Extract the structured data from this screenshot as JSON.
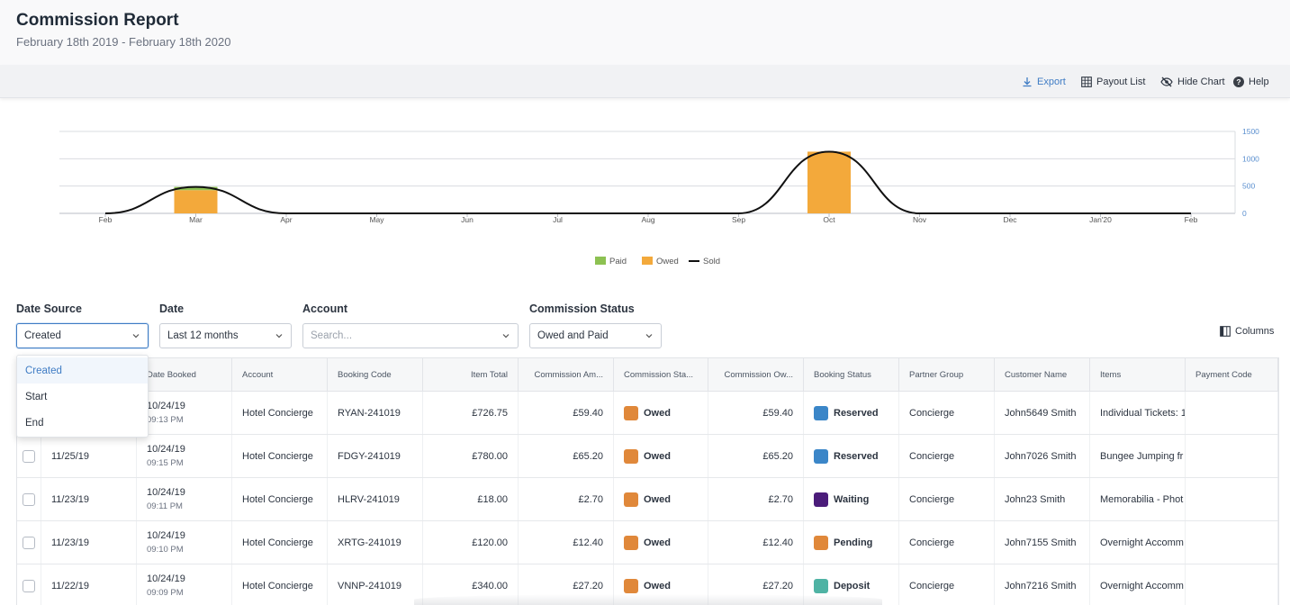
{
  "header": {
    "title": "Commission Report",
    "date_range": "February 18th 2019 - February 18th 2020"
  },
  "toolbar": {
    "export_label": "Export",
    "payout_list_label": "Payout List",
    "hide_chart_label": "Hide Chart",
    "help_label": "Help",
    "accent_color": "#3f7cc4"
  },
  "chart_data": {
    "type": "bar",
    "categories": [
      "Feb",
      "Mar",
      "Apr",
      "May",
      "Jun",
      "Jul",
      "Aug",
      "Sep",
      "Oct",
      "Nov",
      "Dec",
      "Jan'20",
      "Feb"
    ],
    "series": [
      {
        "name": "Paid",
        "kind": "bar",
        "color": "#8dc152",
        "values": [
          0,
          60,
          0,
          0,
          0,
          0,
          0,
          0,
          0,
          0,
          0,
          0,
          0
        ]
      },
      {
        "name": "Owed",
        "kind": "bar",
        "color": "#f3a93b",
        "values": [
          0,
          425,
          0,
          0,
          0,
          0,
          0,
          0,
          1130,
          0,
          0,
          0,
          0
        ]
      },
      {
        "name": "Sold",
        "kind": "line",
        "color": "#111111",
        "values": [
          0,
          485,
          0,
          0,
          0,
          0,
          0,
          0,
          1130,
          0,
          0,
          0,
          0
        ]
      }
    ],
    "y_ticks": [
      "1500",
      "1000",
      "500",
      "0"
    ],
    "ylim": [
      0,
      1500
    ],
    "grid": true,
    "legend_position": "bottom-center"
  },
  "filters": {
    "date_source": {
      "label": "Date Source",
      "value": "Created",
      "options": [
        "Created",
        "Start",
        "End"
      ]
    },
    "date": {
      "label": "Date",
      "value": "Last 12 months"
    },
    "account": {
      "label": "Account",
      "placeholder": "Search..."
    },
    "commission_status": {
      "label": "Commission Status",
      "value": "Owed and Paid"
    },
    "columns_label": "Columns"
  },
  "table": {
    "headers": [
      "",
      "",
      "Date Booked",
      "Account",
      "Booking Code",
      "Item Total",
      "Commission Am...",
      "Commission Sta...",
      "Commission Ow...",
      "Booking Status",
      "Partner Group",
      "Customer Name",
      "Items",
      "Payment Code"
    ],
    "rows": [
      {
        "date": "",
        "booked_date": "10/24/19",
        "booked_time": "09:13 PM",
        "account": "Hotel Concierge",
        "code": "RYAN-241019",
        "item_total": "£726.75",
        "comm_amount": "£59.40",
        "comm_status": "Owed",
        "comm_status_color": "#e0883a",
        "comm_owed": "£59.40",
        "booking_status": "Reserved",
        "booking_status_color": "#3b86c8",
        "partner_group": "Concierge",
        "customer": "John5649 Smith",
        "items": "Individual Tickets: 1",
        "payment_code": ""
      },
      {
        "date": "11/25/19",
        "booked_date": "10/24/19",
        "booked_time": "09:15 PM",
        "account": "Hotel Concierge",
        "code": "FDGY-241019",
        "item_total": "£780.00",
        "comm_amount": "£65.20",
        "comm_status": "Owed",
        "comm_status_color": "#e0883a",
        "comm_owed": "£65.20",
        "booking_status": "Reserved",
        "booking_status_color": "#3b86c8",
        "partner_group": "Concierge",
        "customer": "John7026 Smith",
        "items": "Bungee Jumping fr",
        "payment_code": ""
      },
      {
        "date": "11/23/19",
        "booked_date": "10/24/19",
        "booked_time": "09:11 PM",
        "account": "Hotel Concierge",
        "code": "HLRV-241019",
        "item_total": "£18.00",
        "comm_amount": "£2.70",
        "comm_status": "Owed",
        "comm_status_color": "#e0883a",
        "comm_owed": "£2.70",
        "booking_status": "Waiting",
        "booking_status_color": "#4b1c7a",
        "partner_group": "Concierge",
        "customer": "John23 Smith",
        "items": "Memorabilia - Phot",
        "payment_code": ""
      },
      {
        "date": "11/23/19",
        "booked_date": "10/24/19",
        "booked_time": "09:10 PM",
        "account": "Hotel Concierge",
        "code": "XRTG-241019",
        "item_total": "£120.00",
        "comm_amount": "£12.40",
        "comm_status": "Owed",
        "comm_status_color": "#e0883a",
        "comm_owed": "£12.40",
        "booking_status": "Pending",
        "booking_status_color": "#e0883a",
        "partner_group": "Concierge",
        "customer": "John7155 Smith",
        "items": "Overnight Accomm",
        "payment_code": ""
      },
      {
        "date": "11/22/19",
        "booked_date": "10/24/19",
        "booked_time": "09:09 PM",
        "account": "Hotel Concierge",
        "code": "VNNP-241019",
        "item_total": "£340.00",
        "comm_amount": "£27.20",
        "comm_status": "Owed",
        "comm_status_color": "#e0883a",
        "comm_owed": "£27.20",
        "booking_status": "Deposit",
        "booking_status_color": "#4fb3a4",
        "partner_group": "Concierge",
        "customer": "John7216 Smith",
        "items": "Overnight Accomm",
        "payment_code": ""
      }
    ]
  }
}
